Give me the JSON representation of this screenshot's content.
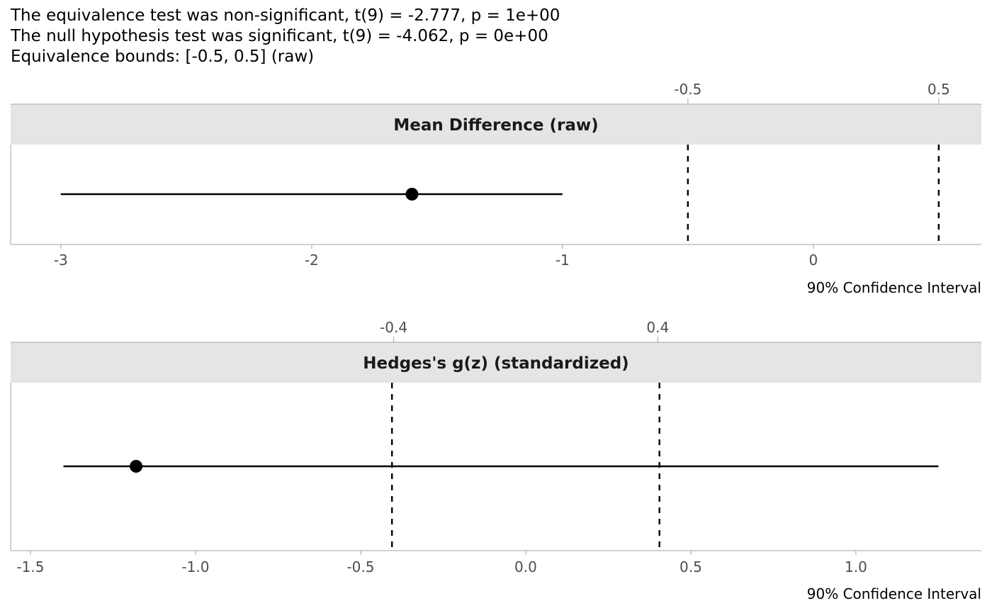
{
  "subtitle": {
    "lines": [
      "The equivalence test was non-significant, t(9) = -2.777, p = 1e+00",
      "The null hypothesis test was significant, t(9) = -4.062, p = 0e+00",
      "Equivalence bounds: [-0.5, 0.5] (raw)"
    ]
  },
  "colors": {
    "strip_fill": "#e5e5e5",
    "axis": "#b3b3b3",
    "tick_text": "#4d4d4d",
    "line": "#000000"
  },
  "chart_data": [
    {
      "type": "scatter",
      "panel_title": "Mean Difference (raw)",
      "xlabel": "90% Confidence Interval",
      "xlim": [
        -3.2,
        0.67
      ],
      "x_ticks": [
        -3,
        -2,
        -1,
        0
      ],
      "x_tick_labels": [
        "-3",
        "-2",
        "-1",
        "0"
      ],
      "top_ticks": [
        -0.5,
        0.5
      ],
      "top_tick_labels": [
        "-0.5",
        "0.5"
      ],
      "equivalence_bounds": [
        -0.5,
        0.5
      ],
      "estimate": -1.6,
      "ci": [
        -3.0,
        -1.0
      ],
      "grid": false
    },
    {
      "type": "scatter",
      "panel_title": "Hedges's g(z) (standardized)",
      "xlabel": "90% Confidence Interval",
      "xlim": [
        -1.56,
        1.38
      ],
      "x_ticks": [
        -1.5,
        -1.0,
        -0.5,
        0.0,
        0.5,
        1.0
      ],
      "x_tick_labels": [
        "-1.5",
        "-1.0",
        "-0.5",
        "0.0",
        "0.5",
        "1.0"
      ],
      "top_ticks": [
        -0.4,
        0.4
      ],
      "top_tick_labels": [
        "-0.4",
        "0.4"
      ],
      "equivalence_bounds": [
        -0.405,
        0.405
      ],
      "estimate": -1.18,
      "ci": [
        -1.4,
        1.25
      ],
      "grid": false
    }
  ]
}
